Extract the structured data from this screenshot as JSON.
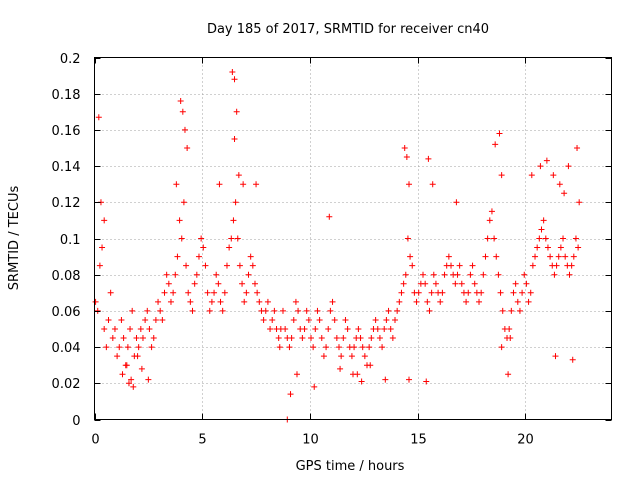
{
  "chart_data": {
    "type": "scatter",
    "title": "Day 185 of 2017, SRMTID for receiver cn40",
    "xlabel": "GPS time / hours",
    "ylabel": "SRMTID / TECUs",
    "xlim": [
      0,
      24
    ],
    "ylim": [
      0,
      0.2
    ],
    "xticks": [
      0,
      5,
      10,
      15,
      20
    ],
    "xtick_labels": [
      "0",
      "5",
      "10",
      "15",
      "20"
    ],
    "yticks": [
      0,
      0.02,
      0.04,
      0.06,
      0.08,
      0.1,
      0.12,
      0.14,
      0.16,
      0.18,
      0.2
    ],
    "ytick_labels": [
      "0",
      "0.02",
      "0.04",
      "0.06",
      "0.08",
      "0.1",
      "0.12",
      "0.14",
      "0.16",
      "0.18",
      "0.2"
    ],
    "grid": true,
    "marker": "plus",
    "series_color": "#ff0000",
    "x": [
      0.05,
      0.15,
      0.25,
      0.35,
      0.45,
      0.55,
      0.65,
      0.75,
      0.85,
      0.95,
      1.05,
      1.15,
      1.25,
      1.35,
      1.45,
      1.55,
      1.65,
      1.75,
      1.85,
      1.95,
      2.05,
      2.15,
      2.25,
      2.35,
      2.45,
      2.55,
      2.65,
      2.75,
      2.85,
      2.95,
      3.05,
      3.15,
      3.25,
      3.35,
      3.45,
      3.55,
      3.65,
      3.75,
      3.85,
      3.95,
      4.05,
      4.15,
      4.25,
      4.35,
      4.45,
      4.55,
      4.65,
      4.75,
      4.85,
      4.95,
      5.05,
      5.15,
      5.25,
      5.35,
      5.45,
      5.55,
      5.65,
      5.75,
      5.85,
      5.95,
      6.05,
      6.15,
      6.25,
      6.35,
      6.45,
      6.55,
      6.65,
      6.75,
      6.85,
      6.95,
      7.05,
      7.15,
      7.25,
      7.35,
      7.45,
      7.55,
      7.65,
      7.75,
      7.85,
      7.95,
      8.05,
      8.15,
      8.25,
      8.35,
      8.45,
      8.55,
      8.65,
      8.75,
      8.85,
      8.95,
      9.05,
      9.15,
      9.25,
      9.35,
      9.45,
      9.55,
      9.65,
      9.75,
      9.85,
      9.95,
      10.05,
      10.15,
      10.25,
      10.35,
      10.45,
      10.55,
      10.65,
      10.75,
      10.85,
      10.95,
      11.05,
      11.15,
      11.25,
      11.35,
      11.45,
      11.55,
      11.65,
      11.75,
      11.85,
      11.95,
      12.05,
      12.15,
      12.25,
      12.35,
      12.45,
      12.55,
      12.65,
      12.75,
      12.85,
      12.95,
      13.05,
      13.15,
      13.25,
      13.35,
      13.45,
      13.55,
      13.65,
      13.75,
      13.85,
      13.95,
      14.05,
      14.15,
      14.25,
      14.35,
      14.45,
      14.55,
      14.65,
      14.75,
      14.85,
      14.95,
      15.05,
      15.15,
      15.25,
      15.35,
      15.45,
      15.55,
      15.65,
      15.75,
      15.85,
      15.95,
      16.05,
      16.15,
      16.25,
      16.35,
      16.45,
      16.55,
      16.65,
      16.75,
      16.85,
      16.95,
      17.05,
      17.15,
      17.25,
      17.35,
      17.45,
      17.55,
      17.65,
      17.75,
      17.85,
      17.95,
      18.05,
      18.15,
      18.25,
      18.35,
      18.45,
      18.55,
      18.65,
      18.75,
      18.85,
      18.95,
      19.05,
      19.15,
      19.25,
      19.35,
      19.45,
      19.55,
      19.65,
      19.75,
      19.85,
      19.95,
      20.05,
      20.15,
      20.25,
      20.35,
      20.45,
      20.55,
      20.65,
      20.75,
      20.85,
      20.95,
      21.05,
      21.15,
      21.25,
      21.35,
      21.45,
      21.55,
      21.65,
      21.75,
      21.85,
      21.95,
      22.05,
      22.15,
      22.25,
      22.35,
      22.45,
      0.2,
      0.3,
      0.45,
      1.6,
      1.8,
      2.5,
      3.8,
      4.0,
      4.2,
      4.3,
      4.1,
      6.4,
      6.5,
      6.6,
      6.5,
      6.7,
      7.5,
      10.9,
      12.2,
      13.5,
      14.4,
      14.5,
      14.6,
      15.5,
      15.7,
      16.8,
      18.6,
      18.8,
      18.9,
      19.2,
      20.3,
      20.7,
      21.0,
      21.3,
      21.6,
      21.8,
      22.0,
      22.2,
      22.4,
      22.5,
      1.3,
      1.5,
      1.7,
      2.0,
      2.2,
      5.8,
      6.9,
      8.6,
      9.1,
      9.4,
      10.2,
      11.4,
      12.0,
      12.4,
      12.8,
      14.6,
      15.4,
      18.9,
      19.3,
      21.4,
      8.95
    ],
    "y": [
      0.065,
      0.06,
      0.085,
      0.095,
      0.05,
      0.04,
      0.055,
      0.07,
      0.045,
      0.05,
      0.035,
      0.04,
      0.055,
      0.045,
      0.03,
      0.04,
      0.05,
      0.06,
      0.035,
      0.045,
      0.04,
      0.05,
      0.045,
      0.055,
      0.06,
      0.05,
      0.04,
      0.045,
      0.055,
      0.065,
      0.06,
      0.055,
      0.07,
      0.08,
      0.075,
      0.065,
      0.07,
      0.08,
      0.09,
      0.11,
      0.1,
      0.12,
      0.085,
      0.07,
      0.065,
      0.06,
      0.075,
      0.08,
      0.09,
      0.1,
      0.095,
      0.085,
      0.07,
      0.06,
      0.065,
      0.07,
      0.08,
      0.075,
      0.065,
      0.06,
      0.07,
      0.085,
      0.095,
      0.1,
      0.11,
      0.12,
      0.1,
      0.085,
      0.075,
      0.065,
      0.07,
      0.08,
      0.09,
      0.085,
      0.075,
      0.07,
      0.065,
      0.06,
      0.055,
      0.06,
      0.065,
      0.05,
      0.055,
      0.06,
      0.05,
      0.045,
      0.05,
      0.06,
      0.05,
      0.045,
      0.04,
      0.045,
      0.055,
      0.065,
      0.06,
      0.05,
      0.045,
      0.05,
      0.06,
      0.055,
      0.045,
      0.04,
      0.05,
      0.06,
      0.055,
      0.045,
      0.035,
      0.04,
      0.05,
      0.06,
      0.065,
      0.055,
      0.045,
      0.04,
      0.035,
      0.045,
      0.055,
      0.05,
      0.04,
      0.035,
      0.04,
      0.045,
      0.05,
      0.045,
      0.04,
      0.035,
      0.03,
      0.04,
      0.045,
      0.05,
      0.055,
      0.05,
      0.045,
      0.04,
      0.05,
      0.055,
      0.06,
      0.05,
      0.045,
      0.055,
      0.06,
      0.065,
      0.07,
      0.075,
      0.08,
      0.1,
      0.09,
      0.085,
      0.07,
      0.065,
      0.07,
      0.075,
      0.08,
      0.075,
      0.065,
      0.06,
      0.07,
      0.08,
      0.075,
      0.07,
      0.065,
      0.07,
      0.08,
      0.085,
      0.09,
      0.085,
      0.08,
      0.075,
      0.08,
      0.085,
      0.075,
      0.07,
      0.065,
      0.07,
      0.08,
      0.085,
      0.075,
      0.07,
      0.065,
      0.07,
      0.08,
      0.09,
      0.1,
      0.11,
      0.115,
      0.1,
      0.09,
      0.08,
      0.07,
      0.06,
      0.05,
      0.045,
      0.05,
      0.06,
      0.07,
      0.075,
      0.065,
      0.06,
      0.07,
      0.08,
      0.075,
      0.065,
      0.07,
      0.085,
      0.09,
      0.095,
      0.1,
      0.105,
      0.11,
      0.1,
      0.095,
      0.09,
      0.085,
      0.08,
      0.085,
      0.09,
      0.095,
      0.1,
      0.09,
      0.085,
      0.08,
      0.085,
      0.09,
      0.1,
      0.095,
      0.167,
      0.12,
      0.11,
      0.02,
      0.018,
      0.022,
      0.13,
      0.176,
      0.16,
      0.15,
      0.17,
      0.192,
      0.188,
      0.17,
      0.155,
      0.135,
      0.13,
      0.112,
      0.025,
      0.022,
      0.15,
      0.145,
      0.13,
      0.144,
      0.13,
      0.12,
      0.152,
      0.158,
      0.135,
      0.025,
      0.135,
      0.14,
      0.143,
      0.135,
      0.13,
      0.125,
      0.14,
      0.033,
      0.15,
      0.12,
      0.025,
      0.03,
      0.022,
      0.035,
      0.028,
      0.13,
      0.13,
      0.04,
      0.014,
      0.025,
      0.018,
      0.028,
      0.025,
      0.021,
      0.03,
      0.022,
      0.021,
      0.04,
      0.045,
      0.035,
      0.0
    ]
  }
}
